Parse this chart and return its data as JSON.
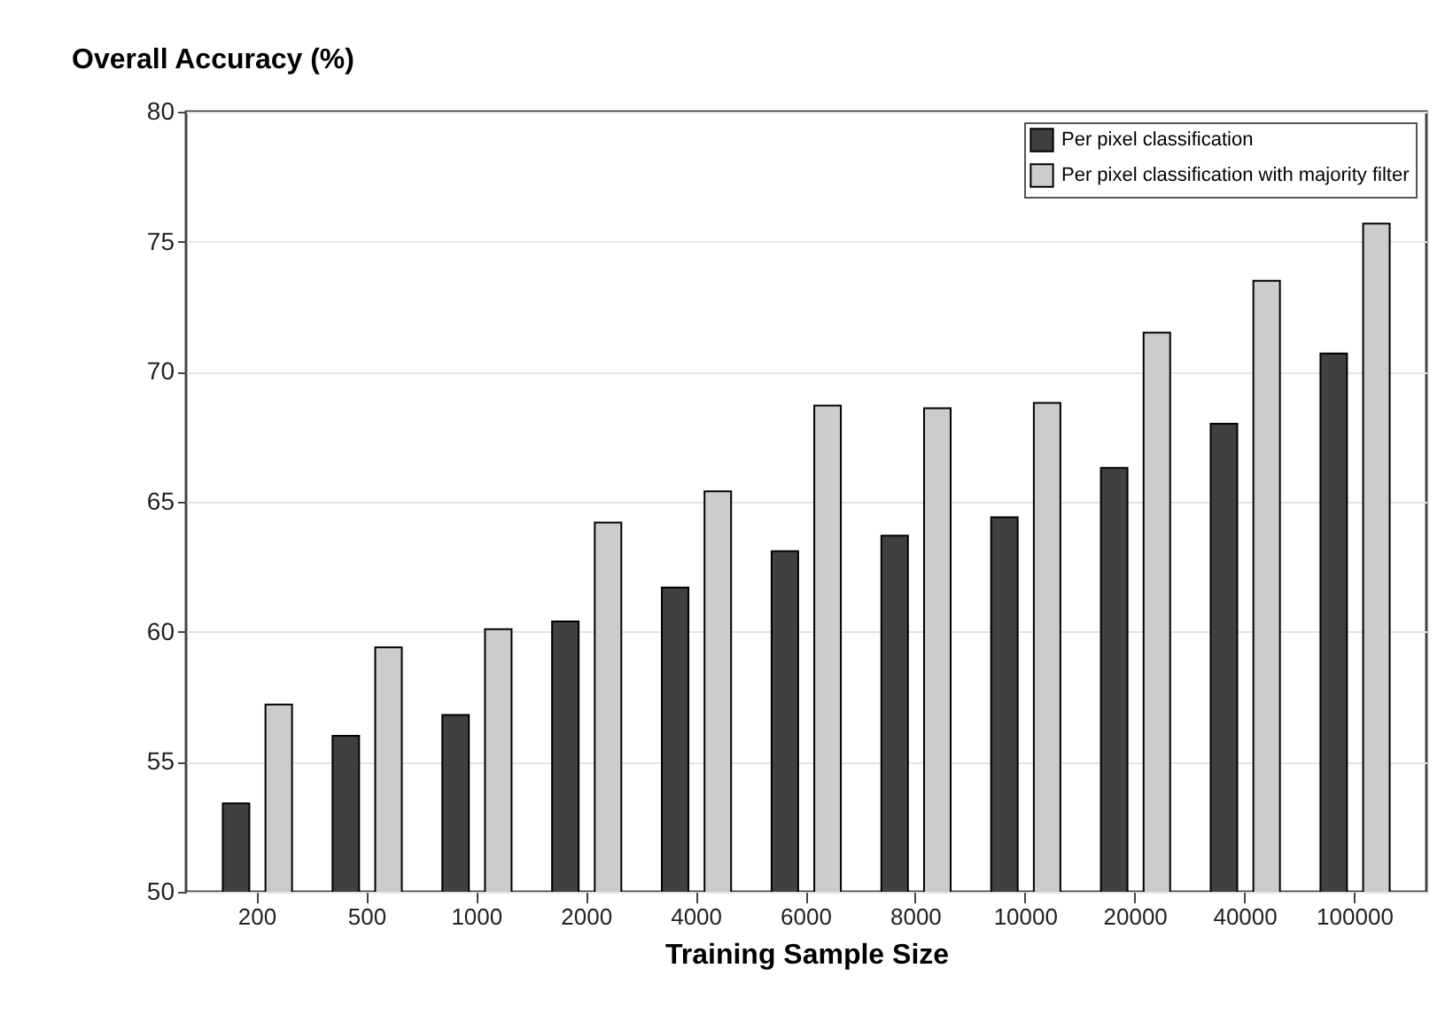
{
  "chart_data": {
    "type": "bar",
    "ylabel": "Overall Accuracy (%)",
    "xlabel": "Training Sample Size",
    "categories": [
      "200",
      "500",
      "1000",
      "2000",
      "4000",
      "6000",
      "8000",
      "10000",
      "20000",
      "40000",
      "100000"
    ],
    "series": [
      {
        "name": "Per pixel classification",
        "color": "#404040",
        "values": [
          53.4,
          56.0,
          56.8,
          60.4,
          61.7,
          63.1,
          63.7,
          64.4,
          66.3,
          68.0,
          70.7
        ]
      },
      {
        "name": "Per pixel classification with majority filter",
        "color": "#cccccc",
        "values": [
          57.2,
          59.4,
          60.1,
          64.2,
          65.4,
          68.7,
          68.6,
          68.8,
          71.5,
          73.5,
          75.7
        ]
      }
    ],
    "ylim": [
      50,
      80
    ],
    "yticks": [
      50,
      55,
      60,
      65,
      70,
      75,
      80
    ],
    "grid": "y",
    "legend": "top right"
  }
}
